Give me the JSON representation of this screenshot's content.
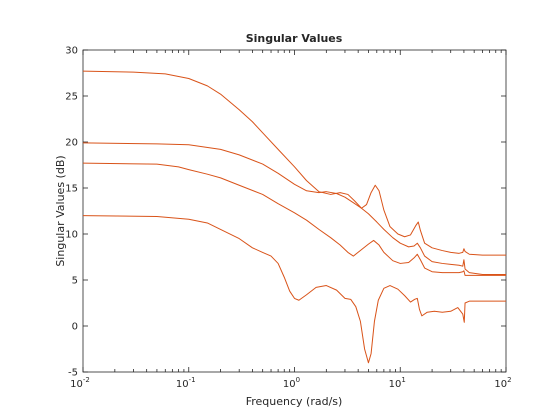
{
  "chart_data": {
    "type": "line",
    "title": "Singular Values",
    "xlabel": "Frequency (rad/s)",
    "ylabel": "Singular Values (dB)",
    "xscale": "log",
    "xlim": [
      0.01,
      100
    ],
    "ylim": [
      -5,
      30
    ],
    "grid": false,
    "x_ticks": [
      {
        "value": 0.01,
        "base": "10",
        "exp": "-2"
      },
      {
        "value": 0.1,
        "base": "10",
        "exp": "-1"
      },
      {
        "value": 1,
        "base": "10",
        "exp": "0"
      },
      {
        "value": 10,
        "base": "10",
        "exp": "1"
      },
      {
        "value": 100,
        "base": "10",
        "exp": "2"
      }
    ],
    "y_ticks": [
      -5,
      0,
      5,
      10,
      15,
      20,
      25,
      30
    ],
    "line_color": "#d95319",
    "series": [
      {
        "values": [
          [
            0.01,
            27.7
          ],
          [
            0.03,
            27.6
          ],
          [
            0.06,
            27.4
          ],
          [
            0.1,
            26.9
          ],
          [
            0.15,
            26.1
          ],
          [
            0.2,
            25.2
          ],
          [
            0.3,
            23.5
          ],
          [
            0.4,
            22.2
          ],
          [
            0.5,
            21.0
          ],
          [
            0.7,
            19.2
          ],
          [
            1.0,
            17.3
          ],
          [
            1.3,
            15.8
          ],
          [
            1.7,
            14.6
          ],
          [
            2.2,
            14.3
          ],
          [
            2.7,
            14.5
          ],
          [
            3.2,
            14.3
          ],
          [
            3.7,
            13.6
          ],
          [
            4.3,
            12.8
          ],
          [
            4.8,
            13.2
          ],
          [
            5.3,
            14.5
          ],
          [
            5.8,
            15.3
          ],
          [
            6.3,
            14.7
          ],
          [
            7.0,
            12.6
          ],
          [
            8.0,
            10.8
          ],
          [
            9.5,
            10.0
          ],
          [
            11,
            9.7
          ],
          [
            12.5,
            9.9
          ],
          [
            14,
            10.9
          ],
          [
            14.8,
            11.3
          ],
          [
            15.5,
            10.4
          ],
          [
            17,
            9.0
          ],
          [
            20,
            8.5
          ],
          [
            25,
            8.2
          ],
          [
            30,
            8.0
          ],
          [
            36,
            7.9
          ],
          [
            39,
            8.0
          ],
          [
            40,
            8.4
          ],
          [
            41,
            8.1
          ],
          [
            45,
            7.8
          ],
          [
            60,
            7.7
          ],
          [
            100,
            7.7
          ]
        ]
      },
      {
        "values": [
          [
            0.01,
            19.9
          ],
          [
            0.05,
            19.8
          ],
          [
            0.1,
            19.7
          ],
          [
            0.2,
            19.2
          ],
          [
            0.3,
            18.6
          ],
          [
            0.5,
            17.6
          ],
          [
            0.7,
            16.6
          ],
          [
            1.0,
            15.4
          ],
          [
            1.3,
            14.7
          ],
          [
            1.7,
            14.5
          ],
          [
            2.0,
            14.6
          ],
          [
            2.5,
            14.4
          ],
          [
            3.0,
            14.0
          ],
          [
            3.6,
            13.4
          ],
          [
            4.3,
            12.8
          ],
          [
            5.0,
            12.2
          ],
          [
            6.0,
            11.3
          ],
          [
            7.0,
            10.5
          ],
          [
            8.5,
            9.6
          ],
          [
            10,
            9.0
          ],
          [
            12,
            8.6
          ],
          [
            13.5,
            8.7
          ],
          [
            14.5,
            9.0
          ],
          [
            15.5,
            8.5
          ],
          [
            17,
            7.6
          ],
          [
            20,
            7.0
          ],
          [
            25,
            6.8
          ],
          [
            30,
            6.7
          ],
          [
            36,
            6.6
          ],
          [
            39,
            6.5
          ],
          [
            40,
            7.2
          ],
          [
            41,
            6.2
          ],
          [
            45,
            5.8
          ],
          [
            60,
            5.6
          ],
          [
            100,
            5.6
          ]
        ]
      },
      {
        "values": [
          [
            0.01,
            17.7
          ],
          [
            0.05,
            17.6
          ],
          [
            0.08,
            17.3
          ],
          [
            0.1,
            17.0
          ],
          [
            0.15,
            16.5
          ],
          [
            0.2,
            16.1
          ],
          [
            0.3,
            15.3
          ],
          [
            0.5,
            14.3
          ],
          [
            0.7,
            13.3
          ],
          [
            1.0,
            12.3
          ],
          [
            1.3,
            11.5
          ],
          [
            1.7,
            10.5
          ],
          [
            2.2,
            9.6
          ],
          [
            2.7,
            8.8
          ],
          [
            3.2,
            8.0
          ],
          [
            3.6,
            7.6
          ],
          [
            4.3,
            8.3
          ],
          [
            5.0,
            8.9
          ],
          [
            5.6,
            9.3
          ],
          [
            6.3,
            8.8
          ],
          [
            7.0,
            8.0
          ],
          [
            8.5,
            7.1
          ],
          [
            10,
            6.8
          ],
          [
            12,
            6.9
          ],
          [
            13.5,
            7.4
          ],
          [
            14.5,
            7.8
          ],
          [
            15.5,
            7.2
          ],
          [
            17,
            6.3
          ],
          [
            20,
            5.9
          ],
          [
            25,
            5.8
          ],
          [
            30,
            5.8
          ],
          [
            36,
            5.8
          ],
          [
            39,
            5.9
          ],
          [
            40,
            6.0
          ],
          [
            41,
            5.5
          ],
          [
            45,
            5.5
          ],
          [
            60,
            5.5
          ],
          [
            100,
            5.5
          ]
        ]
      },
      {
        "values": [
          [
            0.01,
            12.0
          ],
          [
            0.05,
            11.9
          ],
          [
            0.1,
            11.6
          ],
          [
            0.15,
            11.2
          ],
          [
            0.2,
            10.5
          ],
          [
            0.3,
            9.5
          ],
          [
            0.4,
            8.5
          ],
          [
            0.5,
            8.0
          ],
          [
            0.6,
            7.6
          ],
          [
            0.7,
            6.8
          ],
          [
            0.8,
            5.3
          ],
          [
            0.9,
            3.8
          ],
          [
            1.0,
            3.0
          ],
          [
            1.1,
            2.8
          ],
          [
            1.3,
            3.4
          ],
          [
            1.6,
            4.2
          ],
          [
            2.0,
            4.4
          ],
          [
            2.5,
            3.9
          ],
          [
            3.0,
            3.0
          ],
          [
            3.4,
            2.9
          ],
          [
            3.8,
            2.1
          ],
          [
            4.2,
            0.5
          ],
          [
            4.6,
            -2.5
          ],
          [
            5.0,
            -4.0
          ],
          [
            5.3,
            -3.0
          ],
          [
            5.7,
            0.5
          ],
          [
            6.2,
            2.8
          ],
          [
            7.0,
            4.1
          ],
          [
            8.0,
            4.4
          ],
          [
            9.5,
            4.0
          ],
          [
            11,
            3.3
          ],
          [
            12.5,
            2.6
          ],
          [
            13.7,
            2.9
          ],
          [
            14.5,
            3.0
          ],
          [
            15.2,
            1.8
          ],
          [
            16,
            1.1
          ],
          [
            18,
            1.5
          ],
          [
            21,
            1.6
          ],
          [
            25,
            1.5
          ],
          [
            30,
            1.6
          ],
          [
            35,
            2.0
          ],
          [
            39,
            1.3
          ],
          [
            40.3,
            0.4
          ],
          [
            41,
            2.5
          ],
          [
            45,
            2.7
          ],
          [
            60,
            2.7
          ],
          [
            100,
            2.7
          ]
        ]
      }
    ]
  }
}
